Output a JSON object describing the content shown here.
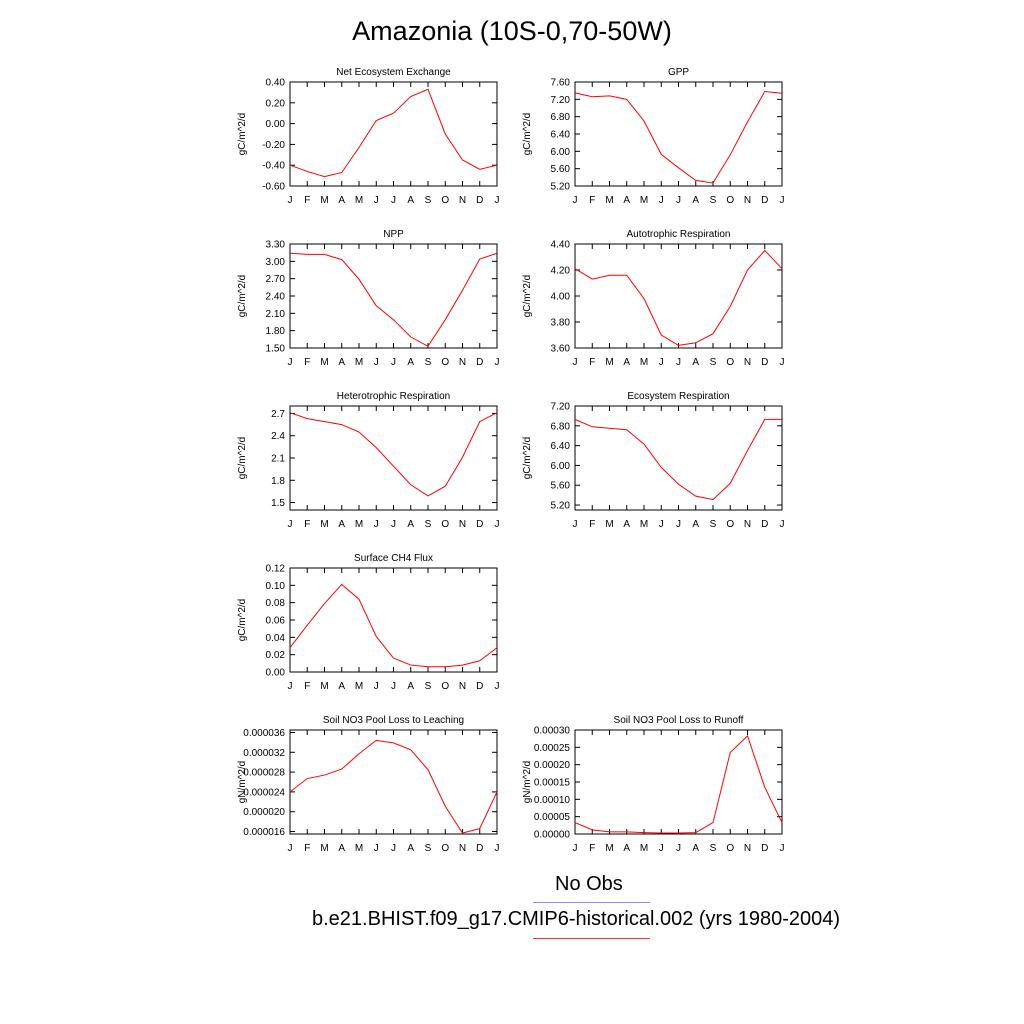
{
  "title": "Amazonia (10S-0,70-50W)",
  "month_labels": [
    "J",
    "F",
    "M",
    "A",
    "M",
    "J",
    "J",
    "A",
    "S",
    "O",
    "N",
    "D",
    "J"
  ],
  "legend": {
    "obs_label": "No Obs",
    "obs_color": "#8a8cf0",
    "model_label": "b.e21.BHIST.f09_g17.CMIP6-historical.002 (yrs 1980-2004)",
    "model_color": "#ee3333"
  },
  "line_color": "#ff0000",
  "chart_data": [
    {
      "type": "line",
      "title": "Net Ecosystem Exchange",
      "ylabel": "gC/m^2/d",
      "ylim": [
        -0.6,
        0.4
      ],
      "yticks": [
        "-0.60",
        "-0.40",
        "-0.20",
        "0.00",
        "0.20",
        "0.40"
      ],
      "values": [
        -0.4,
        -0.46,
        -0.51,
        -0.47,
        -0.23,
        0.03,
        0.1,
        0.26,
        0.33,
        -0.1,
        -0.35,
        -0.44,
        -0.4
      ]
    },
    {
      "type": "line",
      "title": "GPP",
      "ylabel": "gC/m^2/d",
      "ylim": [
        5.2,
        7.6
      ],
      "yticks": [
        "5.20",
        "5.60",
        "6.00",
        "6.40",
        "6.80",
        "7.20",
        "7.60"
      ],
      "values": [
        7.35,
        7.26,
        7.28,
        7.2,
        6.7,
        5.93,
        5.62,
        5.33,
        5.27,
        5.92,
        6.68,
        7.38,
        7.34
      ]
    },
    {
      "type": "line",
      "title": "NPP",
      "ylabel": "gC/m^2/d",
      "ylim": [
        1.5,
        3.3
      ],
      "yticks": [
        "1.50",
        "1.80",
        "2.10",
        "2.40",
        "2.70",
        "3.00",
        "3.30"
      ],
      "values": [
        3.14,
        3.12,
        3.12,
        3.03,
        2.69,
        2.23,
        1.99,
        1.69,
        1.53,
        1.99,
        2.5,
        3.04,
        3.14
      ]
    },
    {
      "type": "line",
      "title": "Autotrophic Respiration",
      "ylabel": "gC/m^2/d",
      "ylim": [
        3.6,
        4.4
      ],
      "yticks": [
        "3.60",
        "3.80",
        "4.00",
        "4.20",
        "4.40"
      ],
      "values": [
        4.21,
        4.13,
        4.16,
        4.16,
        3.98,
        3.7,
        3.62,
        3.64,
        3.71,
        3.92,
        4.2,
        4.35,
        4.21
      ]
    },
    {
      "type": "line",
      "title": "Heterotrophic Respiration",
      "ylabel": "gC/m^2/d",
      "ylim": [
        1.4,
        2.8
      ],
      "yticks": [
        "1.5",
        "1.8",
        "2.1",
        "2.4",
        "2.7"
      ],
      "values": [
        2.71,
        2.63,
        2.59,
        2.55,
        2.45,
        2.24,
        1.99,
        1.74,
        1.59,
        1.72,
        2.11,
        2.59,
        2.71
      ]
    },
    {
      "type": "line",
      "title": "Ecosystem Respiration",
      "ylabel": "gC/m^2/d",
      "ylim": [
        5.1,
        7.2
      ],
      "yticks": [
        "5.20",
        "5.60",
        "6.00",
        "6.40",
        "6.80",
        "7.20"
      ],
      "values": [
        6.93,
        6.78,
        6.75,
        6.72,
        6.43,
        5.96,
        5.62,
        5.38,
        5.31,
        5.64,
        6.3,
        6.93,
        6.93
      ]
    },
    {
      "type": "line",
      "title": "Surface CH4 Flux",
      "ylabel": "gC/m^2/d",
      "ylim": [
        0.0,
        0.12
      ],
      "yticks": [
        "0.00",
        "0.02",
        "0.04",
        "0.06",
        "0.08",
        "0.10",
        "0.12"
      ],
      "values": [
        0.028,
        0.054,
        0.079,
        0.101,
        0.084,
        0.041,
        0.016,
        0.008,
        0.006,
        0.006,
        0.008,
        0.013,
        0.028
      ]
    },
    null,
    {
      "type": "line",
      "title": "Soil NO3 Pool Loss to Leaching",
      "ylabel": "gN/m^2/d",
      "ylim": [
        1.55e-05,
        3.65e-05
      ],
      "yticks": [
        "0.000016",
        "0.000020",
        "0.000024",
        "0.000028",
        "0.000032",
        "0.000036"
      ],
      "values": [
        2.4e-05,
        2.67e-05,
        2.74e-05,
        2.86e-05,
        3.17e-05,
        3.44e-05,
        3.39e-05,
        3.25e-05,
        2.85e-05,
        2.11e-05,
        1.57e-05,
        1.66e-05,
        2.4e-05
      ]
    },
    {
      "type": "line",
      "title": "Soil NO3 Pool Loss to Runoff",
      "ylabel": "gN/m^2/d",
      "ylim": [
        0.0,
        0.0003
      ],
      "yticks": [
        "0.00000",
        "0.00005",
        "0.00010",
        "0.00015",
        "0.00020",
        "0.00025",
        "0.00030"
      ],
      "values": [
        3.3e-05,
        1.2e-05,
        6e-06,
        6e-06,
        4e-06,
        3e-06,
        3e-06,
        4e-06,
        3.3e-05,
        0.000235,
        0.000283,
        0.000135,
        3.3e-05
      ]
    }
  ]
}
